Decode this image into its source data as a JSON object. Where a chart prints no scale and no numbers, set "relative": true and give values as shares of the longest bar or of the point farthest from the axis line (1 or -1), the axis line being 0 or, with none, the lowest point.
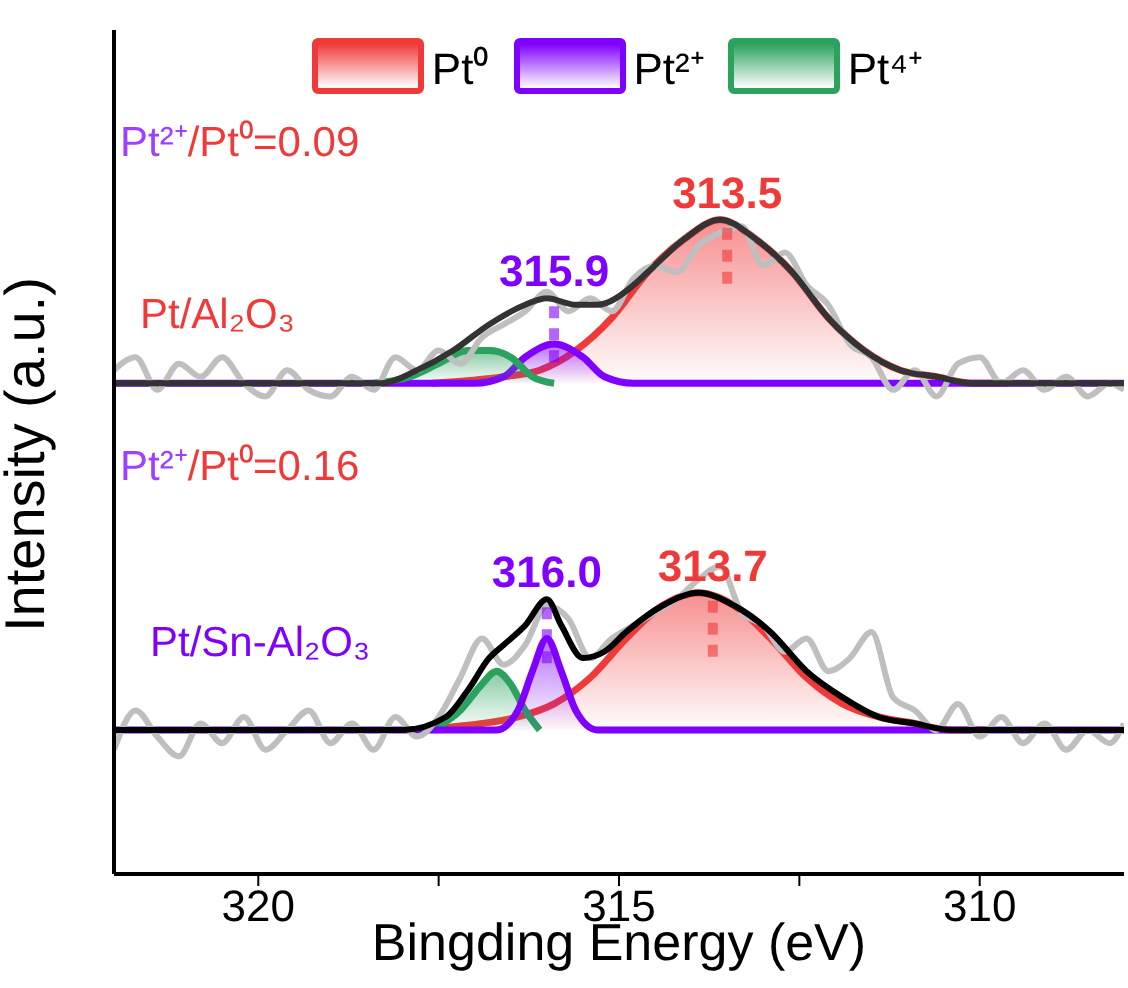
{
  "chart_data": {
    "type": "line",
    "relative": true,
    "xlabel": "Bingding Energy (eV)",
    "ylabel": "Intensity (a.u.)",
    "xlim": [
      322,
      308
    ],
    "xticks": [
      320,
      {
        "value": 317.5,
        "label": null
      },
      315,
      {
        "value": 312.5,
        "label": null
      },
      310
    ],
    "legend": "top",
    "grid": false,
    "marker": "none",
    "annotations": [
      "Pt²⁺/Pt⁰=0.09",
      "Pt/Al₂O₃",
      "Pt²⁺/Pt⁰=0.16",
      "Pt/Sn-Al₂O₃",
      {
        "text": "315.9",
        "x": 315.9,
        "y": 0.88
      },
      {
        "text": "313.5",
        "x": 313.5,
        "y": 1.0
      },
      {
        "text": "316.0",
        "x": 316.0,
        "y": 0.42
      },
      {
        "text": "313.7",
        "x": 313.7,
        "y": 0.43
      }
    ],
    "series": [
      {
        "color": "#bfbfbf",
        "x": [
          322.0,
          321.7,
          321.4,
          321.1,
          320.8,
          320.5,
          320.2,
          319.9,
          319.6,
          319.3,
          319.0,
          318.7,
          318.4,
          318.1,
          317.8,
          317.5,
          317.2,
          316.9,
          316.6,
          316.3,
          316.0,
          315.7,
          315.4,
          315.1,
          314.8,
          314.5,
          314.2,
          313.9,
          313.6,
          313.3,
          313.0,
          312.7,
          312.4,
          312.1,
          311.8,
          311.5,
          311.2,
          310.9,
          310.6,
          310.3,
          310.0,
          309.7,
          309.4,
          309.1,
          308.8,
          308.5,
          308.2,
          308.0
        ],
        "values": [
          0.77,
          0.79,
          0.74,
          0.78,
          0.76,
          0.79,
          0.75,
          0.73,
          0.77,
          0.74,
          0.73,
          0.76,
          0.74,
          0.79,
          0.77,
          0.8,
          0.78,
          0.82,
          0.84,
          0.86,
          0.89,
          0.86,
          0.88,
          0.86,
          0.91,
          0.93,
          0.92,
          0.96,
          0.98,
          0.99,
          0.93,
          0.95,
          0.9,
          0.87,
          0.81,
          0.79,
          0.74,
          0.77,
          0.73,
          0.78,
          0.79,
          0.75,
          0.77,
          0.74,
          0.76,
          0.73,
          0.75,
          0.74
        ]
      },
      {
        "color": "#333333",
        "x": [
          322,
          319.0,
          318.3,
          317.8,
          317.3,
          316.8,
          316.3,
          316.0,
          315.6,
          315.3,
          314.8,
          314.6,
          314.1,
          313.6,
          313.1,
          312.6,
          312.1,
          311.6,
          311.1,
          310.6,
          310.1,
          309.0,
          308
        ],
        "values": [
          0.75,
          0.75,
          0.75,
          0.77,
          0.8,
          0.84,
          0.87,
          0.88,
          0.87,
          0.87,
          0.9,
          0.92,
          0.97,
          1.0,
          0.97,
          0.92,
          0.85,
          0.8,
          0.77,
          0.76,
          0.75,
          0.75,
          0.75
        ]
      },
      {
        "type": "area",
        "name": "Pt⁰",
        "color": "#f03a3a",
        "x": [
          309.6,
          310.1,
          310.6,
          311.1,
          311.6,
          312.1,
          312.6,
          313.1,
          313.6,
          314.1,
          314.6,
          315.1,
          315.6,
          316.1,
          316.6,
          317.6
        ],
        "values": [
          0.75,
          0.75,
          0.76,
          0.77,
          0.8,
          0.85,
          0.92,
          0.97,
          1.0,
          0.97,
          0.92,
          0.85,
          0.8,
          0.77,
          0.76,
          0.75
        ]
      },
      {
        "type": "area",
        "name": "Pt²⁺",
        "color": "#8000ff",
        "x": [
          308,
          314.8,
          315.2,
          315.5,
          315.9,
          316.3,
          316.6,
          317.0,
          322
        ],
        "values": [
          0.75,
          0.75,
          0.76,
          0.79,
          0.81,
          0.79,
          0.76,
          0.75,
          0.75
        ]
      },
      {
        "type": "area",
        "name": "Pt⁴⁺",
        "color": "#2ca25f",
        "x": [
          315.9,
          316.2,
          316.5,
          316.8,
          317.1,
          317.5,
          317.9,
          318.4
        ],
        "values": [
          0.75,
          0.76,
          0.79,
          0.8,
          0.8,
          0.78,
          0.76,
          0.75
        ]
      },
      {
        "color": "#bfbfbf",
        "x": [
          322.0,
          321.7,
          321.4,
          321.1,
          320.8,
          320.5,
          320.2,
          319.9,
          319.6,
          319.3,
          319.0,
          318.7,
          318.4,
          318.1,
          317.8,
          317.5,
          317.2,
          316.9,
          316.6,
          316.3,
          316.0,
          315.7,
          315.4,
          315.1,
          314.8,
          314.5,
          314.2,
          313.9,
          313.6,
          313.3,
          313.0,
          312.7,
          312.4,
          312.1,
          311.8,
          311.5,
          311.2,
          310.9,
          310.6,
          310.3,
          310.0,
          309.7,
          309.4,
          309.1,
          308.8,
          308.5,
          308.2,
          308.0
        ],
        "values": [
          0.19,
          0.25,
          0.21,
          0.18,
          0.23,
          0.2,
          0.24,
          0.19,
          0.22,
          0.25,
          0.2,
          0.23,
          0.19,
          0.24,
          0.21,
          0.24,
          0.3,
          0.36,
          0.32,
          0.35,
          0.41,
          0.39,
          0.33,
          0.36,
          0.38,
          0.4,
          0.42,
          0.45,
          0.47,
          0.4,
          0.38,
          0.34,
          0.36,
          0.31,
          0.33,
          0.37,
          0.27,
          0.25,
          0.22,
          0.26,
          0.21,
          0.24,
          0.2,
          0.23,
          0.19,
          0.22,
          0.2,
          0.23
        ]
      },
      {
        "color": "#000000",
        "x": [
          322,
          318.0,
          317.4,
          317.1,
          316.8,
          316.6,
          316.3,
          316.0,
          315.8,
          315.5,
          315.2,
          314.9,
          314.4,
          313.9,
          313.4,
          312.9,
          312.4,
          311.9,
          311.4,
          310.9,
          310.4,
          309.5,
          308
        ],
        "values": [
          0.22,
          0.22,
          0.24,
          0.28,
          0.33,
          0.35,
          0.38,
          0.42,
          0.38,
          0.33,
          0.34,
          0.37,
          0.41,
          0.43,
          0.41,
          0.37,
          0.31,
          0.27,
          0.24,
          0.23,
          0.22,
          0.22,
          0.22
        ]
      },
      {
        "type": "area",
        "color": "#f03a3a",
        "x": [
          309.9,
          310.4,
          310.9,
          311.4,
          311.9,
          312.4,
          312.9,
          313.4,
          313.9,
          314.4,
          314.9,
          315.4,
          315.9,
          316.4,
          316.9,
          317.9
        ],
        "values": [
          0.22,
          0.22,
          0.23,
          0.24,
          0.26,
          0.3,
          0.36,
          0.41,
          0.43,
          0.41,
          0.36,
          0.3,
          0.26,
          0.24,
          0.23,
          0.22
        ]
      },
      {
        "type": "area",
        "color": "#2ca25f",
        "x": [
          316.1,
          316.3,
          316.5,
          316.7,
          316.9,
          317.2,
          317.6
        ],
        "values": [
          0.22,
          0.25,
          0.29,
          0.31,
          0.29,
          0.25,
          0.22
        ]
      },
      {
        "type": "area",
        "color": "#8000ff",
        "x": [
          308,
          315.3,
          315.6,
          315.8,
          316.0,
          316.2,
          316.4,
          316.7,
          322
        ],
        "values": [
          0.22,
          0.22,
          0.25,
          0.31,
          0.36,
          0.31,
          0.25,
          0.22,
          0.22
        ]
      }
    ]
  }
}
